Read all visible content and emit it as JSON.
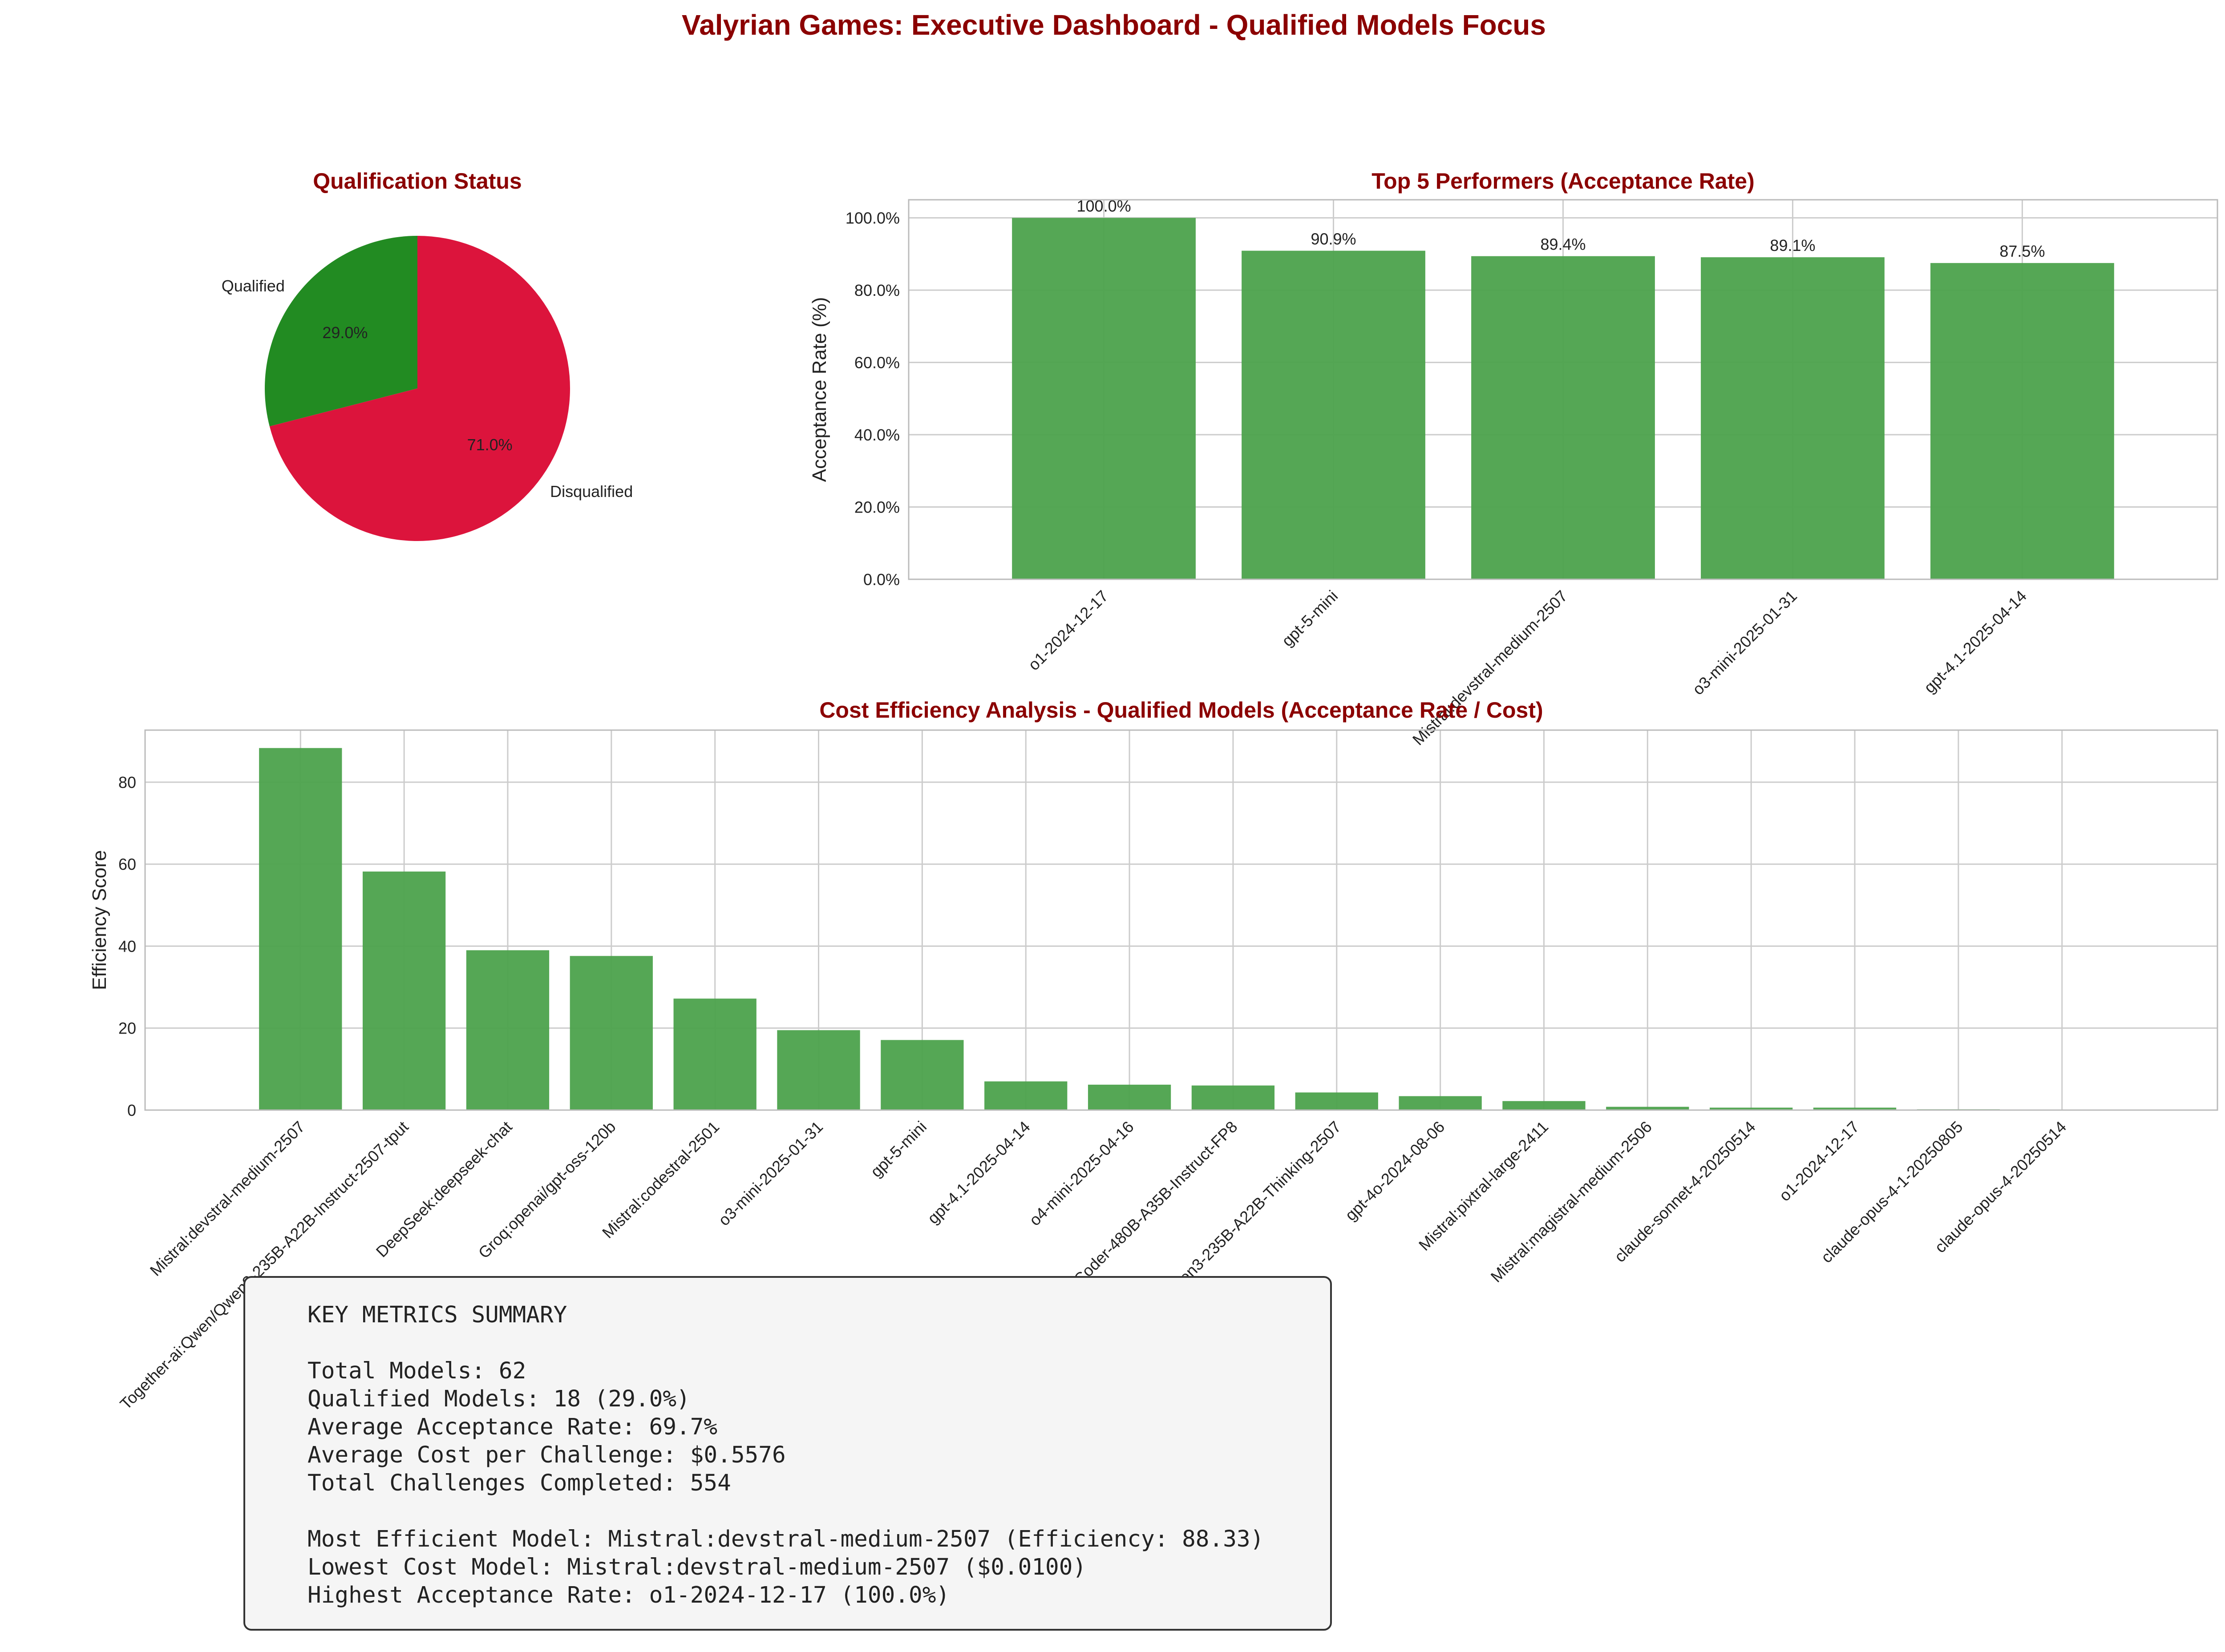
{
  "figure_title": "Valyrian Games: Executive Dashboard - Qualified Models Focus",
  "colors": {
    "title": "#8B0000",
    "qualified": "#228B22",
    "disqualified": "#DC143C",
    "bar": "#4CA24C",
    "grid": "#CCCCCC",
    "axes": "#BBBBBB"
  },
  "chart_data": [
    {
      "type": "pie",
      "title": "Qualification Status",
      "slices": [
        {
          "label": "Qualified",
          "value": 29.0,
          "pct_label": "29.0%",
          "color": "#228B22"
        },
        {
          "label": "Disqualified",
          "value": 71.0,
          "pct_label": "71.0%",
          "color": "#DC143C"
        }
      ]
    },
    {
      "type": "bar",
      "title": "Top 5 Performers (Acceptance Rate)",
      "ylabel": "Acceptance Rate (%)",
      "categories": [
        "o1-2024-12-17",
        "gpt-5-mini",
        "Mistral:devstral-medium-2507",
        "o3-mini-2025-01-31",
        "gpt-4.1-2025-04-14"
      ],
      "values": [
        100.0,
        90.9,
        89.4,
        89.1,
        87.5
      ],
      "value_labels": [
        "100.0%",
        "90.9%",
        "89.4%",
        "89.1%",
        "87.5%"
      ],
      "ylim": [
        0,
        105
      ],
      "yticks": [
        0,
        20,
        40,
        60,
        80,
        100
      ],
      "ytick_labels": [
        "0.0%",
        "20.0%",
        "40.0%",
        "60.0%",
        "80.0%",
        "100.0%"
      ],
      "grid": true
    },
    {
      "type": "bar",
      "title": "Cost Efficiency Analysis - Qualified Models (Acceptance Rate / Cost)",
      "ylabel": "Efficiency Score",
      "categories": [
        "Mistral:devstral-medium-2507",
        "Together-ai:Qwen/Qwen3-235B-A22B-Instruct-2507-tput",
        "DeepSeek:deepseek-chat",
        "Groq:openai/gpt-oss-120b",
        "Mistral:codestral-2501",
        "o3-mini-2025-01-31",
        "gpt-5-mini",
        "gpt-4.1-2025-04-14",
        "o4-mini-2025-04-16",
        "Together-ai:Qwen/Qwen3-Coder-480B-A35B-Instruct-FP8",
        "Together-ai:Qwen/Qwen3-235B-A22B-Thinking-2507",
        "gpt-4o-2024-08-06",
        "Mistral:pixtral-large-2411",
        "Mistral:magistral-medium-2506",
        "claude-sonnet-4-20250514",
        "o1-2024-12-17",
        "claude-opus-4-1-20250805",
        "claude-opus-4-20250514"
      ],
      "values": [
        88.33,
        58.2,
        39.0,
        37.6,
        27.2,
        19.5,
        17.1,
        7.0,
        6.2,
        6.0,
        4.3,
        3.4,
        2.2,
        0.8,
        0.6,
        0.6,
        0.2,
        0.1
      ],
      "ylim": [
        0,
        92.7
      ],
      "yticks": [
        0,
        20,
        40,
        60,
        80
      ],
      "ytick_labels": [
        "0",
        "20",
        "40",
        "60",
        "80"
      ],
      "grid": true
    }
  ],
  "summary": {
    "heading": "KEY METRICS SUMMARY",
    "lines": [
      "Total Models: 62",
      "Qualified Models: 18 (29.0%)",
      "Average Acceptance Rate: 69.7%",
      "Average Cost per Challenge: $0.5576",
      "Total Challenges Completed: 554"
    ],
    "highlights": [
      "Most Efficient Model: Mistral:devstral-medium-2507 (Efficiency: 88.33)",
      "Lowest Cost Model: Mistral:devstral-medium-2507 ($0.0100)",
      "Highest Acceptance Rate: o1-2024-12-17 (100.0%)"
    ]
  }
}
